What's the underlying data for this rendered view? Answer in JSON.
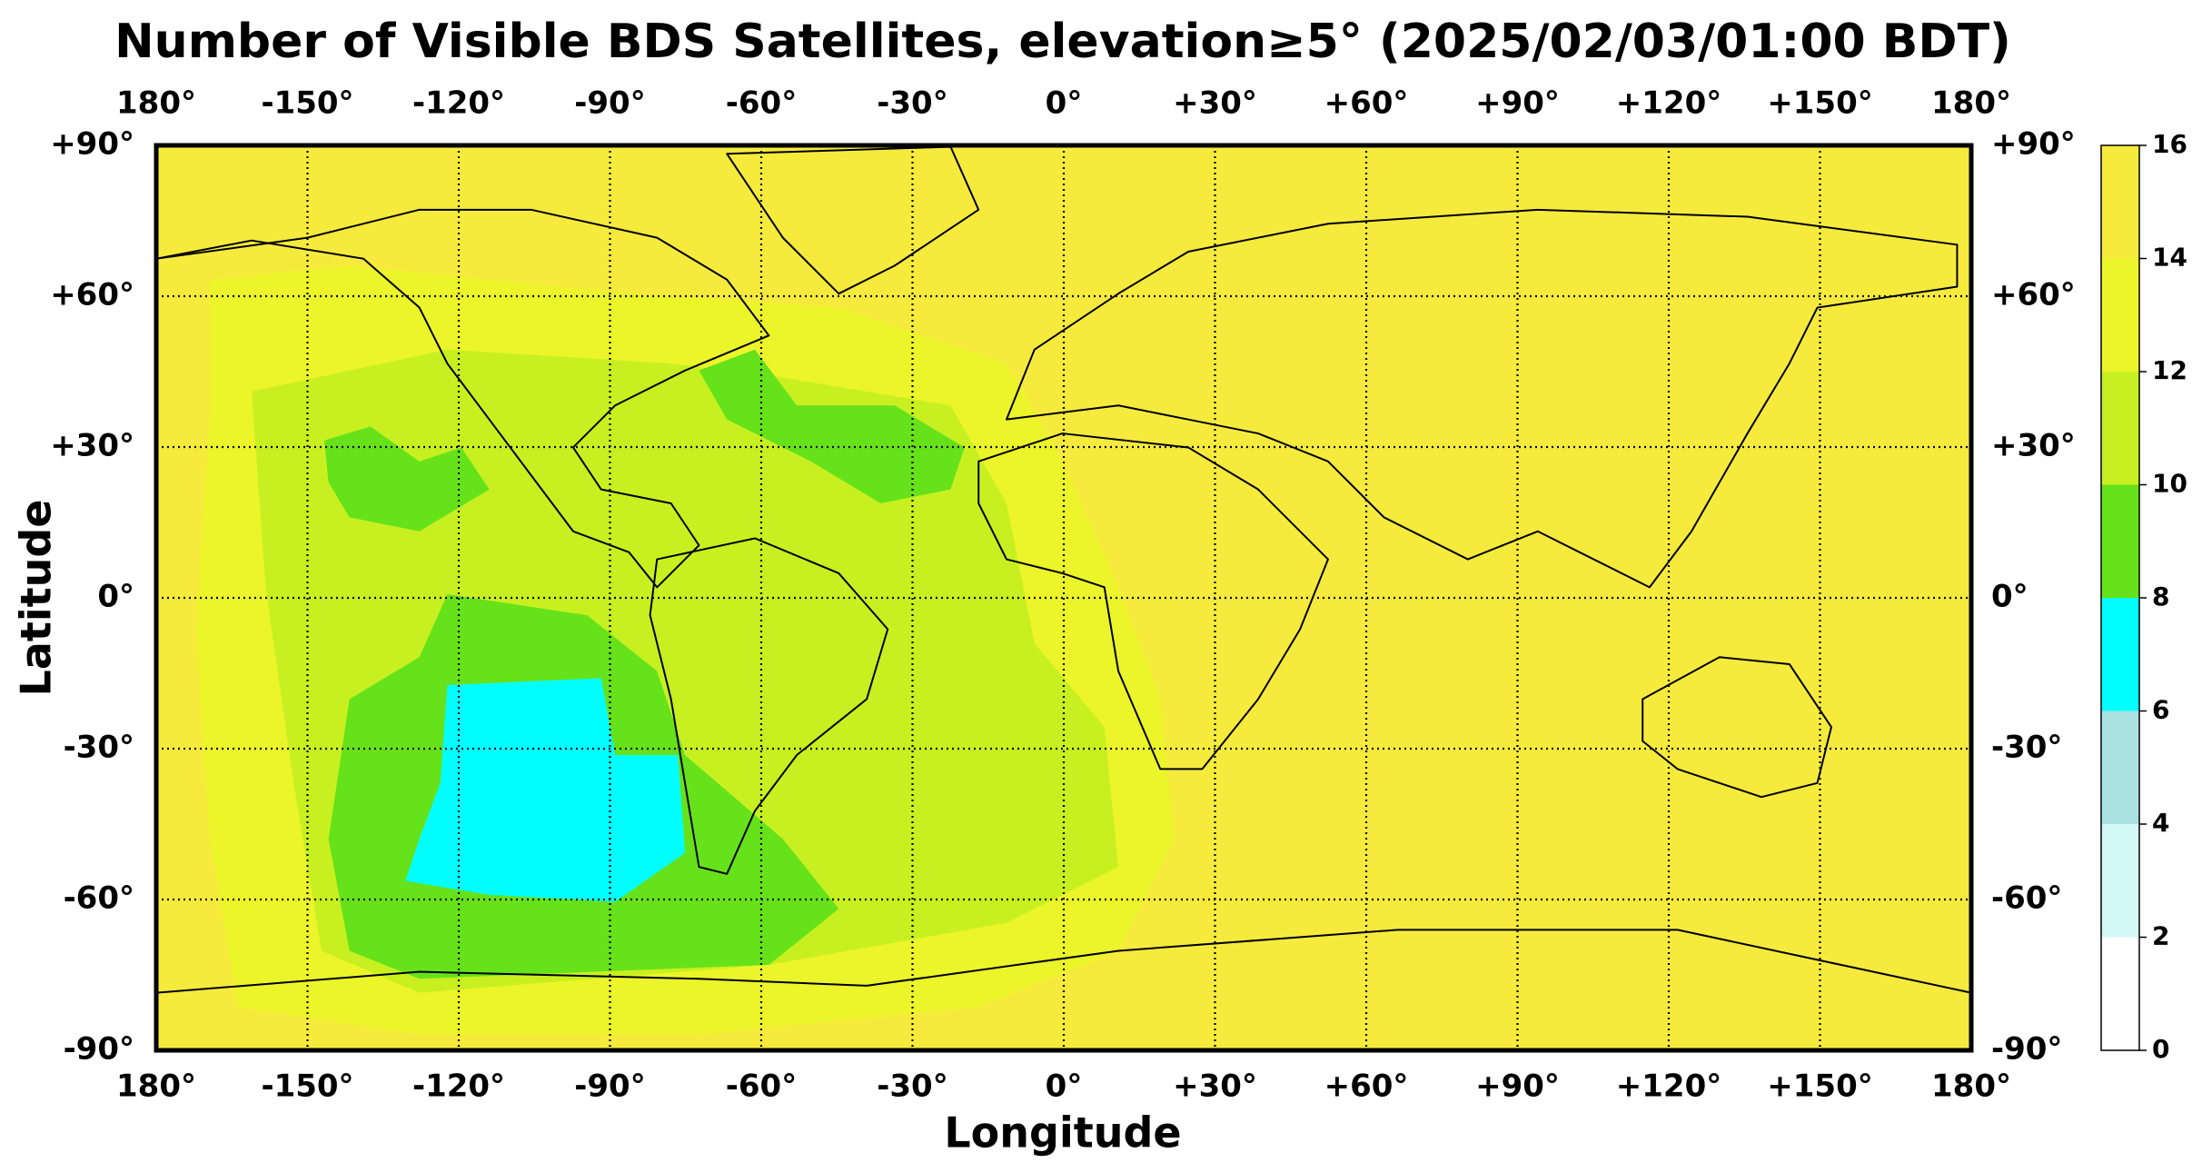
{
  "chart_data": {
    "type": "map",
    "title": "Number of Visible BDS Satellites, elevation≥5° (2025/02/03/01:00 BDT)",
    "xlabel": "Longitude",
    "ylabel": "Latitude",
    "xlim": [
      -180,
      180
    ],
    "ylim": [
      -90,
      90
    ],
    "xticks": [
      {
        "value": -180,
        "label": "180°"
      },
      {
        "value": -150,
        "label": "-150°"
      },
      {
        "value": -120,
        "label": "-120°"
      },
      {
        "value": -90,
        "label": "-90°"
      },
      {
        "value": -60,
        "label": "-60°"
      },
      {
        "value": -30,
        "label": "-30°"
      },
      {
        "value": 0,
        "label": "0°"
      },
      {
        "value": 30,
        "label": "+30°"
      },
      {
        "value": 60,
        "label": "+60°"
      },
      {
        "value": 90,
        "label": "+90°"
      },
      {
        "value": 120,
        "label": "+120°"
      },
      {
        "value": 150,
        "label": "+150°"
      },
      {
        "value": 180,
        "label": "180°"
      }
    ],
    "yticks": [
      {
        "value": 90,
        "label": "+90°"
      },
      {
        "value": 60,
        "label": "+60°"
      },
      {
        "value": 30,
        "label": "+30°"
      },
      {
        "value": 0,
        "label": "0°"
      },
      {
        "value": -30,
        "label": "-30°"
      },
      {
        "value": -60,
        "label": "-60°"
      },
      {
        "value": -90,
        "label": "-90°"
      }
    ],
    "grid": true,
    "colorbar": {
      "ticks": [
        0,
        2,
        4,
        6,
        8,
        10,
        12,
        14,
        16
      ],
      "colors": [
        "#ffffff",
        "#d2f8f8",
        "#aae2e2",
        "#00ffff",
        "#66e21a",
        "#c8f020",
        "#ecf52a",
        "#f6eb3d"
      ]
    }
  }
}
